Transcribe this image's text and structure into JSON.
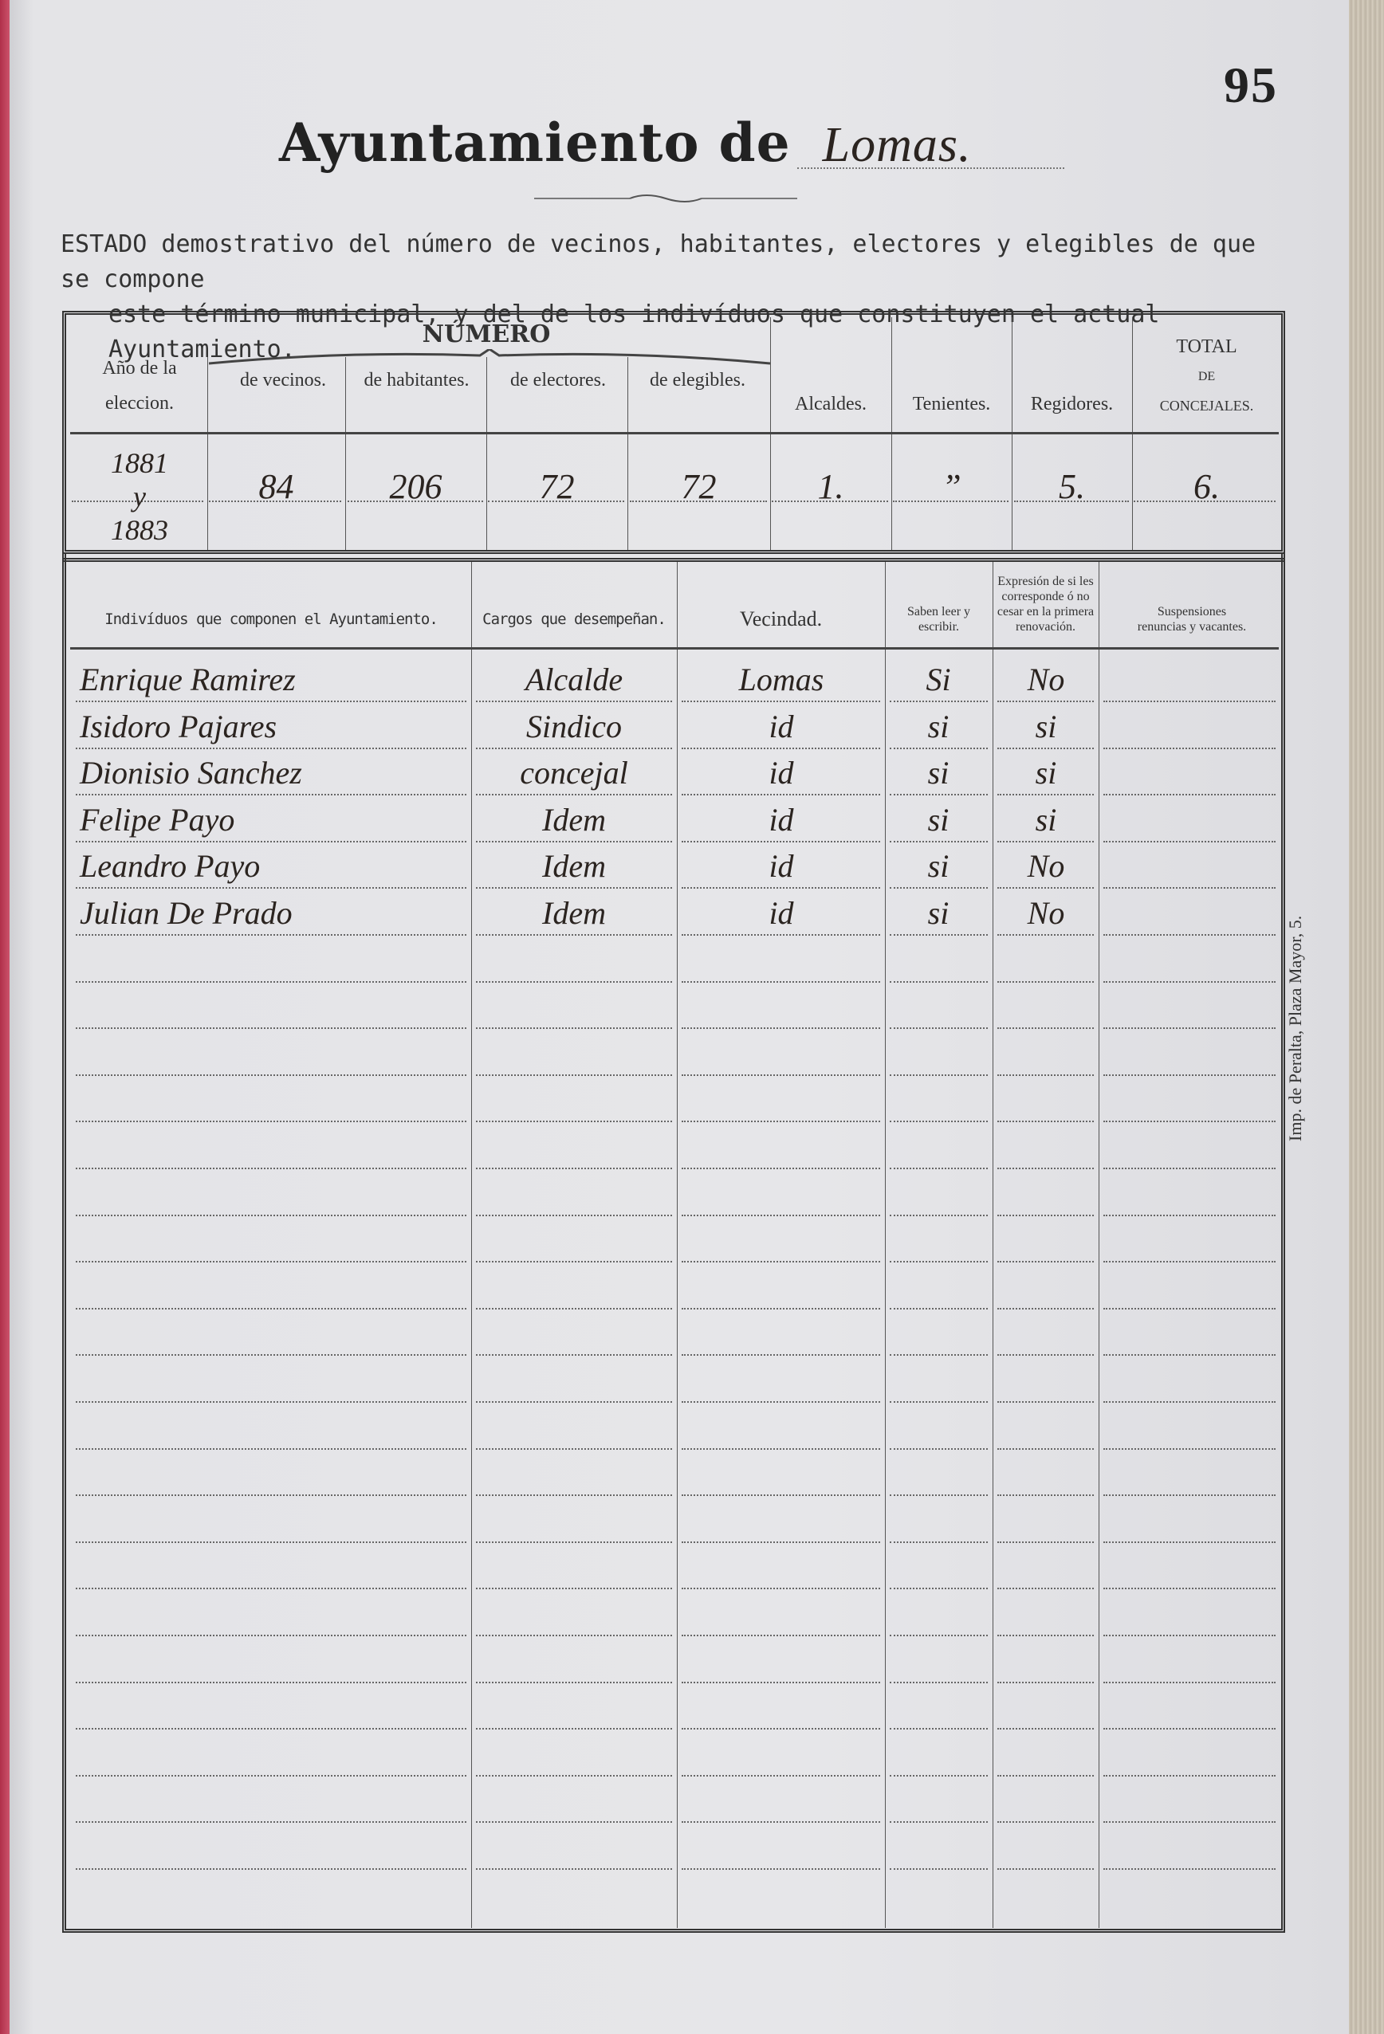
{
  "page_number": "95",
  "title": {
    "printed": "Ayuntamiento de",
    "handwritten": "Lomas."
  },
  "intro": {
    "line1": "ESTADO demostrativo del número de vecinos, habitantes, electores y elegibles de que se compone",
    "line2": "este término municipal, y del de los indivíduos que constituyen el actual Ayuntamiento."
  },
  "summary_table": {
    "group_header": "NÚMERO",
    "headers": {
      "year": "Año de la eleccion.",
      "vecinos": "de vecinos.",
      "habitantes": "de habitantes.",
      "electores": "de electores.",
      "elegibles": "de elegibles.",
      "alcaldes": "Alcaldes.",
      "tenientes": "Tenientes.",
      "regidores": "Regidores.",
      "total_1": "TOTAL",
      "total_2": "DE",
      "total_3": "CONCEJALES."
    },
    "row": {
      "year_1": "1881",
      "year_2": "y",
      "year_3": "1883",
      "vecinos": "84",
      "habitantes": "206",
      "electores": "72",
      "elegibles": "72",
      "alcaldes": "1.",
      "tenientes": "”",
      "regidores": "5.",
      "total": "6."
    }
  },
  "members_table": {
    "headers": {
      "individuos": "Indivíduos que componen el Ayuntamiento.",
      "cargos": "Cargos que desempeñan.",
      "vecindad": "Vecindad.",
      "saben": "Saben leer y escribir.",
      "expresion": "Expresión de si les corresponde ó no cesar en la primera renovación.",
      "suspensiones": "Suspensiones renuncias y vacantes."
    },
    "rows": [
      {
        "name": "Enrique Ramirez",
        "cargo": "Alcalde",
        "vecindad": "Lomas",
        "saben": "Si",
        "cesar": "No"
      },
      {
        "name": "Isidoro Pajares",
        "cargo": "Sindico",
        "vecindad": "id",
        "saben": "si",
        "cesar": "si"
      },
      {
        "name": "Dionisio Sanchez",
        "cargo": "concejal",
        "vecindad": "id",
        "saben": "si",
        "cesar": "si"
      },
      {
        "name": "Felipe Payo",
        "cargo": "Idem",
        "vecindad": "id",
        "saben": "si",
        "cesar": "si"
      },
      {
        "name": "Leandro Payo",
        "cargo": "Idem",
        "vecindad": "id",
        "saben": "si",
        "cesar": "No"
      },
      {
        "name": "Julian De Prado",
        "cargo": "Idem",
        "vecindad": "id",
        "saben": "si",
        "cesar": "No"
      }
    ]
  },
  "imprint": "Imp. de Peralta, Plaza Mayor, 5."
}
